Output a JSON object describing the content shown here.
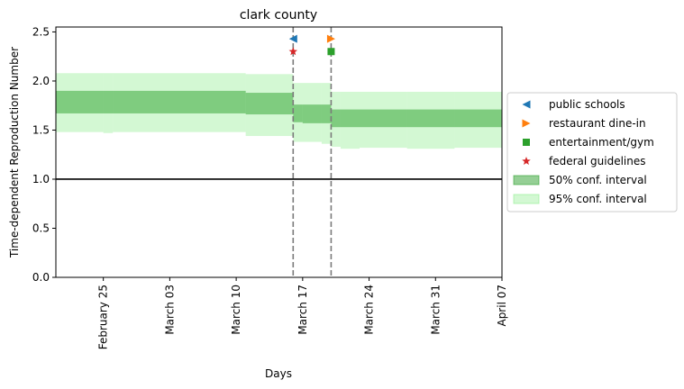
{
  "chart_data": {
    "type": "line",
    "title": "clark county",
    "xlabel": "Days",
    "ylabel": "Time-dependent Reproduction Number",
    "xlim": [
      "2020-02-20",
      "2020-04-07"
    ],
    "ylim": [
      0,
      2.55
    ],
    "x_ticks": [
      {
        "date": "2020-02-25",
        "label": "February 25"
      },
      {
        "date": "2020-03-03",
        "label": "March 03"
      },
      {
        "date": "2020-03-10",
        "label": "March 10"
      },
      {
        "date": "2020-03-17",
        "label": "March 17"
      },
      {
        "date": "2020-03-24",
        "label": "March 24"
      },
      {
        "date": "2020-03-31",
        "label": "March 31"
      },
      {
        "date": "2020-04-07",
        "label": "April 07"
      }
    ],
    "y_ticks": [
      0.0,
      0.5,
      1.0,
      1.5,
      2.0,
      2.5
    ],
    "y_tick_labels": [
      "0.0",
      "0.5",
      "1.0",
      "1.5",
      "2.0",
      "2.5"
    ],
    "grid": false,
    "legend_position": "outside-right",
    "reference_line": {
      "y": 1.0,
      "color": "#000000"
    },
    "interventions": [
      {
        "name": "public schools",
        "date": "2020-03-16",
        "y": 2.43,
        "marker": "triangle-left",
        "color": "#1f77b4"
      },
      {
        "name": "restaurant dine-in",
        "date": "2020-03-20",
        "y": 2.43,
        "marker": "triangle-right",
        "color": "#ff7f0e"
      },
      {
        "name": "entertainment/gym",
        "date": "2020-03-20",
        "y": 2.3,
        "marker": "square",
        "color": "#2ca02c"
      },
      {
        "name": "federal guidelines",
        "date": "2020-03-16",
        "y": 2.3,
        "marker": "star",
        "color": "#d62728"
      }
    ],
    "intervention_lines": [
      "2020-03-16",
      "2020-03-20"
    ],
    "intervals": [
      {
        "name": "50% conf. interval",
        "color": "#2ca02c",
        "segments": [
          {
            "start": "2020-02-20",
            "end": "2020-03-11",
            "low": 1.67,
            "high": 1.9
          },
          {
            "start": "2020-03-11",
            "end": "2020-03-16",
            "low": 1.66,
            "high": 1.88
          },
          {
            "start": "2020-03-16",
            "end": "2020-03-17",
            "low": 1.58,
            "high": 1.76
          },
          {
            "start": "2020-03-17",
            "end": "2020-03-20",
            "low": 1.57,
            "high": 1.76
          },
          {
            "start": "2020-03-20",
            "end": "2020-04-07",
            "low": 1.53,
            "high": 1.71
          }
        ]
      },
      {
        "name": "95% conf. interval",
        "color": "#90ee90",
        "segments": [
          {
            "start": "2020-02-20",
            "end": "2020-02-25",
            "low": 1.48,
            "high": 2.08
          },
          {
            "start": "2020-02-25",
            "end": "2020-02-26",
            "low": 1.47,
            "high": 2.08
          },
          {
            "start": "2020-02-26",
            "end": "2020-03-11",
            "low": 1.48,
            "high": 2.08
          },
          {
            "start": "2020-03-11",
            "end": "2020-03-16",
            "low": 1.44,
            "high": 2.07
          },
          {
            "start": "2020-03-16",
            "end": "2020-03-19",
            "low": 1.38,
            "high": 1.98
          },
          {
            "start": "2020-03-19",
            "end": "2020-03-20",
            "low": 1.36,
            "high": 1.98
          },
          {
            "start": "2020-03-20",
            "end": "2020-03-21",
            "low": 1.33,
            "high": 1.89
          },
          {
            "start": "2020-03-21",
            "end": "2020-03-23",
            "low": 1.31,
            "high": 1.89
          },
          {
            "start": "2020-03-23",
            "end": "2020-03-28",
            "low": 1.32,
            "high": 1.89
          },
          {
            "start": "2020-03-28",
            "end": "2020-04-02",
            "low": 1.31,
            "high": 1.89
          },
          {
            "start": "2020-04-02",
            "end": "2020-04-07",
            "low": 1.32,
            "high": 1.89
          }
        ]
      }
    ],
    "legend": [
      {
        "label": "public schools",
        "marker": "triangle-left",
        "color": "#1f77b4"
      },
      {
        "label": "restaurant dine-in",
        "marker": "triangle-right",
        "color": "#ff7f0e"
      },
      {
        "label": "entertainment/gym",
        "marker": "square",
        "color": "#2ca02c"
      },
      {
        "label": "federal guidelines",
        "marker": "star",
        "color": "#d62728"
      },
      {
        "label": "50% conf. interval",
        "marker": "patch",
        "color": "#2ca02c"
      },
      {
        "label": "95% conf. interval",
        "marker": "patch",
        "color": "#90ee90"
      }
    ]
  }
}
